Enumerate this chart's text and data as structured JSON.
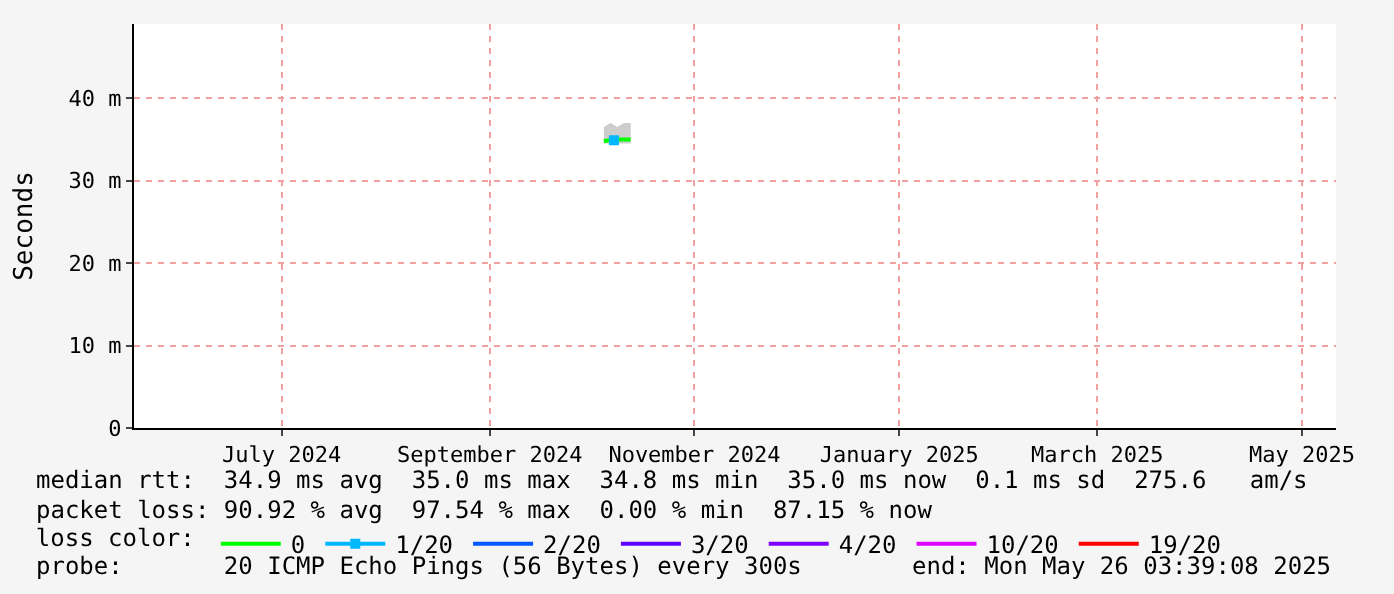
{
  "chart_data": {
    "type": "line",
    "ylabel": "Seconds",
    "xlim": [
      "2024-06-02",
      "2025-05-26T03:39"
    ],
    "xticks": [
      {
        "value": "2024-07-16",
        "label": "July 2024"
      },
      {
        "value": "2024-09-16",
        "label": "September 2024"
      },
      {
        "value": "2024-11-16",
        "label": "November 2024"
      },
      {
        "value": "2025-01-16",
        "label": "January 2025"
      },
      {
        "value": "2025-03-16",
        "label": "March 2025"
      },
      {
        "value": "2025-05-16",
        "label": "May 2025"
      }
    ],
    "ylim": [
      0,
      49
    ],
    "yticks": [
      0,
      {
        "value": 10,
        "label": "10 m"
      },
      {
        "value": 20,
        "label": "20 m"
      },
      {
        "value": 30,
        "label": "30 m"
      },
      {
        "value": 40,
        "label": "40 m"
      }
    ],
    "grid": true,
    "legend": "bottom",
    "legend_title": "loss color:",
    "series": [
      {
        "name": "0",
        "color": "#00ff00",
        "x": [
          "2024-10-20",
          "2024-10-22",
          "2024-10-24",
          "2024-10-26",
          "2024-10-28"
        ],
        "values": [
          34.8,
          34.9,
          35.0,
          35.0,
          35.0
        ],
        "lower": [
          34.5,
          34.5,
          34.5,
          34.5,
          34.5
        ],
        "upper": [
          36.5,
          37.0,
          36.5,
          37.0,
          37.0
        ]
      },
      {
        "name": "1/20",
        "color": "#00b8ff",
        "x": [
          "2024-10-23"
        ],
        "values": [
          34.9
        ],
        "marker": "square"
      },
      {
        "name": "2/20",
        "color": "#0059ff"
      },
      {
        "name": "3/20",
        "color": "#5e00ff"
      },
      {
        "name": "4/20",
        "color": "#7e00ff"
      },
      {
        "name": "10/20",
        "color": "#dd00ff"
      },
      {
        "name": "19/20",
        "color": "#ff0000"
      }
    ],
    "annotations": [
      "median rtt:  34.9 ms avg  35.0 ms max  34.8 ms min  35.0 ms now  0.1 ms sd  275.6   am/s",
      "packet loss: 90.92 % avg  97.54 % max  0.00 % min  87.15 % now",
      "probe:       20 ICMP Echo Pings (56 Bytes) every 300s",
      "end: Mon May 26 03:39:08 2025"
    ]
  }
}
